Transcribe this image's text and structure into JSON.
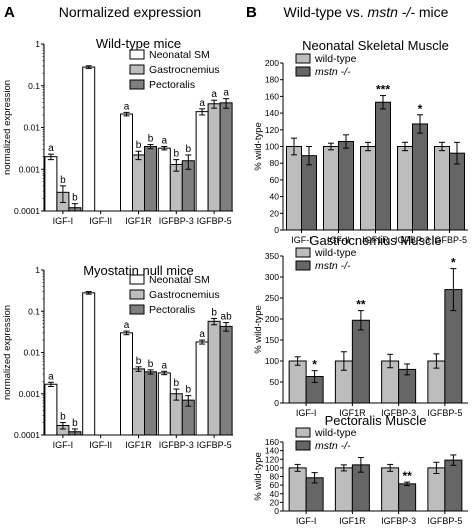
{
  "panel_labels": [
    "A",
    "B"
  ],
  "headings": {
    "A": "Normalized expression",
    "B_prefix": "Wild-type vs. ",
    "B_italic": "mstn -/-",
    "B_suffix": " mice"
  },
  "colors": {
    "neonatal_sm": "#ffffff",
    "gastrocnemius": "#bdbdbd",
    "pectoralis": "#7f7f7f",
    "wild_type": "#bdbdbd",
    "mstn": "#666666"
  },
  "chart_data": [
    {
      "id": "wt-mice",
      "type": "bar",
      "title": "Wild-type mice",
      "ylabel": "normalized expression",
      "yscale": "log",
      "ylim": [
        0.0001,
        1
      ],
      "yticks": [
        0.0001,
        0.001,
        0.01,
        0.1,
        1
      ],
      "yticklabels": [
        "0.0001",
        "0.001",
        "0.01",
        "0.1",
        "1"
      ],
      "legend_position": "top-right",
      "categories": [
        "IGF-I",
        "IGF-II",
        "IGF1R",
        "IGFBP-3",
        "IGFBP-5"
      ],
      "series": [
        {
          "name": "Neonatal SM",
          "color_key": "neonatal_sm",
          "values": [
            0.002,
            0.28,
            0.021,
            0.0032,
            0.024
          ],
          "errors": [
            0.0003,
            0.02,
            0.002,
            0.0003,
            0.004
          ],
          "labels": [
            "a",
            "",
            "a",
            "a",
            "a"
          ]
        },
        {
          "name": "Gastrocnemius",
          "color_key": "gastrocnemius",
          "values": [
            0.00028,
            null,
            0.0022,
            0.0013,
            0.037
          ],
          "errors": [
            0.00012,
            null,
            0.0005,
            0.0004,
            0.008
          ],
          "labels": [
            "b",
            "",
            "b",
            "b",
            "a"
          ]
        },
        {
          "name": "Pectoralis",
          "color_key": "pectoralis",
          "values": [
            0.00012,
            null,
            0.0035,
            0.0016,
            0.039
          ],
          "errors": [
            3e-05,
            null,
            0.0004,
            0.0006,
            0.01
          ],
          "labels": [
            "b",
            "",
            "b",
            "b",
            "a"
          ]
        }
      ]
    },
    {
      "id": "null-mice",
      "type": "bar",
      "title": "Myostatin null mice",
      "ylabel": "normalized expression",
      "yscale": "log",
      "ylim": [
        0.0001,
        1
      ],
      "yticks": [
        0.0001,
        0.001,
        0.01,
        0.1,
        1
      ],
      "yticklabels": [
        "0.0001",
        "0.001",
        "0.01",
        "0.1",
        "1"
      ],
      "legend_position": "top-right",
      "categories": [
        "IGF-I",
        "IGF-II",
        "IGF1R",
        "IGFBP-3",
        "IGFBP-5"
      ],
      "series": [
        {
          "name": "Neonatal SM",
          "color_key": "neonatal_sm",
          "values": [
            0.0017,
            0.28,
            0.03,
            0.0032,
            0.018
          ],
          "errors": [
            0.0002,
            0.02,
            0.003,
            0.0003,
            0.002
          ],
          "labels": [
            "a",
            "",
            "a",
            "a",
            "a"
          ]
        },
        {
          "name": "Gastrocnemius",
          "color_key": "gastrocnemius",
          "values": [
            0.00017,
            null,
            0.004,
            0.001,
            0.057
          ],
          "errors": [
            3e-05,
            null,
            0.0005,
            0.0003,
            0.01
          ],
          "labels": [
            "b",
            "",
            "b",
            "b",
            "b"
          ]
        },
        {
          "name": "Pectoralis",
          "color_key": "pectoralis",
          "values": [
            0.00012,
            null,
            0.0034,
            0.0007,
            0.043
          ],
          "errors": [
            2e-05,
            null,
            0.0004,
            0.0002,
            0.01
          ],
          "labels": [
            "b",
            "",
            "b",
            "b",
            "ab"
          ]
        }
      ]
    },
    {
      "id": "neonatal-muscle",
      "type": "bar",
      "title": "Neonatal Skeletal Muscle",
      "ylabel": "% wild-type",
      "ylim": [
        0,
        200
      ],
      "yticks": [
        0,
        20,
        40,
        60,
        80,
        100,
        120,
        140,
        160,
        180,
        200
      ],
      "legend_position": "top-left",
      "categories": [
        "IGF-I",
        "IGF-II",
        "IGF1R",
        "IGFBP-3",
        "IGFBP-5"
      ],
      "series": [
        {
          "name": "wild-type",
          "italic": false,
          "color_key": "wild_type",
          "values": [
            100,
            100,
            100,
            100,
            100
          ],
          "errors": [
            10,
            4,
            5,
            5,
            5
          ],
          "labels": [
            "",
            "",
            "",
            "",
            ""
          ]
        },
        {
          "name": "mstn -/-",
          "italic": true,
          "color_key": "mstn",
          "values": [
            89,
            106,
            153,
            127,
            92
          ],
          "errors": [
            11,
            8,
            8,
            11,
            13
          ],
          "labels": [
            "",
            "",
            "***",
            "*",
            ""
          ]
        }
      ]
    },
    {
      "id": "gastrocnemius-muscle",
      "type": "bar",
      "title": "Gastrocnemius Muscle",
      "ylabel": "% wild-type",
      "ylim": [
        0,
        350
      ],
      "yticks": [
        0,
        50,
        100,
        150,
        200,
        250,
        300,
        350
      ],
      "legend_position": "top-left",
      "categories": [
        "IGF-I",
        "IGF1R",
        "IGFBP-3",
        "IGFBP-5"
      ],
      "series": [
        {
          "name": "wild-type",
          "italic": false,
          "color_key": "wild_type",
          "values": [
            100,
            100,
            100,
            100
          ],
          "errors": [
            10,
            22,
            16,
            17
          ],
          "labels": [
            "",
            "",
            "",
            ""
          ]
        },
        {
          "name": "mstn -/-",
          "italic": true,
          "color_key": "mstn",
          "values": [
            63,
            197,
            80,
            270
          ],
          "errors": [
            14,
            23,
            13,
            50
          ],
          "labels": [
            "*",
            "**",
            "",
            "*"
          ]
        }
      ]
    },
    {
      "id": "pectoralis-muscle",
      "type": "bar",
      "title": "Pectoralis Muscle",
      "ylabel": "% wild-type",
      "ylim": [
        0,
        160
      ],
      "yticks": [
        0,
        20,
        40,
        60,
        80,
        100,
        120,
        140,
        160
      ],
      "legend_position": "top-left",
      "categories": [
        "IGF-I",
        "IGF1R",
        "IGFBP-3",
        "IGFBP-5"
      ],
      "series": [
        {
          "name": "wild-type",
          "italic": false,
          "color_key": "wild_type",
          "values": [
            100,
            100,
            100,
            100
          ],
          "errors": [
            8,
            7,
            8,
            13
          ],
          "labels": [
            "",
            "",
            "",
            ""
          ]
        },
        {
          "name": "mstn -/-",
          "italic": true,
          "color_key": "mstn",
          "values": [
            77,
            107,
            63,
            118
          ],
          "errors": [
            12,
            17,
            4,
            12
          ],
          "labels": [
            "",
            "",
            "**",
            ""
          ]
        }
      ]
    }
  ]
}
